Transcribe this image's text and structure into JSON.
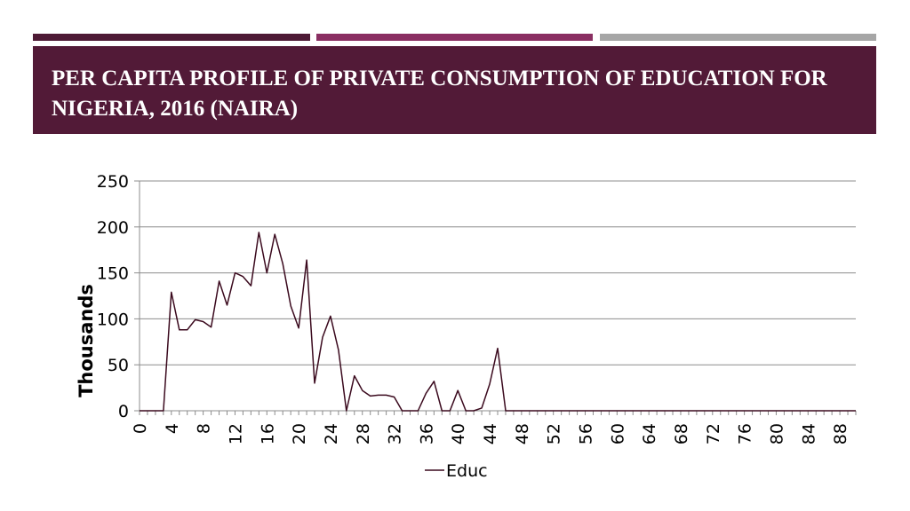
{
  "slide": {
    "title": "PER CAPITA PROFILE OF PRIVATE CONSUMPTION OF EDUCATION FOR NIGERIA, 2016 (NAIRA)",
    "accent_colors": [
      "#4e1a35",
      "#8a2f62",
      "#a6a6a6"
    ],
    "title_bg": "#521a37"
  },
  "chart_data": {
    "type": "line",
    "title": "",
    "xlabel": "",
    "ylabel": "Thousands",
    "ylim": [
      0,
      250
    ],
    "yticks": [
      0,
      50,
      100,
      150,
      200,
      250
    ],
    "xlim": [
      0,
      90
    ],
    "xticks": [
      0,
      4,
      8,
      12,
      16,
      20,
      24,
      28,
      32,
      36,
      40,
      44,
      48,
      52,
      56,
      60,
      64,
      68,
      72,
      76,
      80,
      84,
      88
    ],
    "grid": true,
    "legend": "bottom",
    "series": [
      {
        "name": "Educ",
        "color": "#3b0a1e",
        "x": [
          0,
          1,
          2,
          3,
          4,
          5,
          6,
          7,
          8,
          9,
          10,
          11,
          12,
          13,
          14,
          15,
          16,
          17,
          18,
          19,
          20,
          21,
          22,
          23,
          24,
          25,
          26,
          27,
          28,
          29,
          30,
          31,
          32,
          33,
          34,
          35,
          36,
          37,
          38,
          39,
          40,
          41,
          42,
          43,
          44,
          45,
          46,
          47,
          48,
          49,
          50,
          51,
          52,
          53,
          54,
          55,
          56,
          57,
          58,
          59,
          60,
          61,
          62,
          63,
          64,
          65,
          66,
          67,
          68,
          69,
          70,
          71,
          72,
          73,
          74,
          75,
          76,
          77,
          78,
          79,
          80,
          81,
          82,
          83,
          84,
          85,
          86,
          87,
          88,
          89,
          90
        ],
        "values": [
          0,
          0,
          0,
          0,
          129,
          88,
          88,
          99,
          97,
          91,
          141,
          115,
          150,
          146,
          136,
          194,
          150,
          192,
          160,
          114,
          90,
          164,
          30,
          80,
          103,
          66,
          0,
          38,
          22,
          16,
          17,
          17,
          15,
          0,
          0,
          0,
          19,
          32,
          0,
          0,
          22,
          0,
          0,
          3,
          29,
          68,
          0,
          0,
          0,
          0,
          0,
          0,
          0,
          0,
          0,
          0,
          0,
          0,
          0,
          0,
          0,
          0,
          0,
          0,
          0,
          0,
          0,
          0,
          0,
          0,
          0,
          0,
          0,
          0,
          0,
          0,
          0,
          0,
          0,
          0,
          0,
          0,
          0,
          0,
          0,
          0,
          0,
          0,
          0,
          0,
          0
        ]
      }
    ]
  }
}
